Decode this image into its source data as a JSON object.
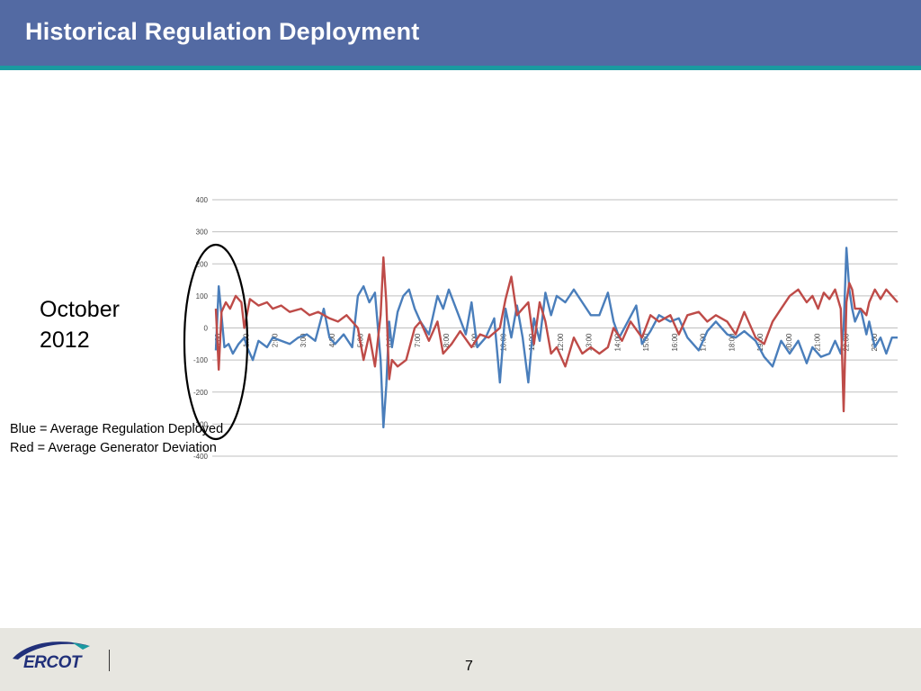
{
  "slide": {
    "title": "Historical Regulation Deployment",
    "side_label_line1": "October",
    "side_label_line2": "2012",
    "legend_blue": "Blue = Average Regulation Deployed",
    "legend_red": "Red = Average Generator Deviation",
    "page_number": "7"
  },
  "footer": {
    "logo_text": "ERCOT"
  },
  "colors": {
    "header": "#536aa3",
    "stripe": "#1a9aa0",
    "blue_series": "#4a7ebb",
    "red_series": "#be4b48",
    "footer": "#e7e6e0"
  },
  "chart_data": {
    "type": "line",
    "title": "",
    "xlabel": "",
    "ylabel": "",
    "ylim": [
      -400,
      400
    ],
    "yticks": [
      400,
      300,
      200,
      100,
      0,
      -100,
      -200,
      -300,
      -400
    ],
    "yticks_labels": [
      "400",
      "300",
      "200",
      "100",
      "0",
      "-100",
      "-200",
      "-300",
      "-400"
    ],
    "x_tick_labels": [
      "0:00",
      "1:00",
      "2:00",
      "3:00",
      "4:00",
      "5:00",
      "6:00",
      "7:00",
      "8:00",
      "9:00",
      "10:00",
      "11:00",
      "12:00",
      "13:00",
      "14:00",
      "15:00",
      "16:00",
      "17:00",
      "18:00",
      "19:00",
      "20:00",
      "21:00",
      "22:00",
      "23:00"
    ],
    "grid": true,
    "annotation": "ellipse highlighting 0:00-1:00",
    "series": [
      {
        "color": "#4a7ebb",
        "x": [
          0,
          0.1,
          0.2,
          0.3,
          0.45,
          0.6,
          0.8,
          1.0,
          1.1,
          1.3,
          1.5,
          1.8,
          2.0,
          2.3,
          2.6,
          2.9,
          3.2,
          3.5,
          3.8,
          4.0,
          4.2,
          4.5,
          4.8,
          5.0,
          5.2,
          5.4,
          5.6,
          5.8,
          5.9,
          6.0,
          6.1,
          6.2,
          6.4,
          6.6,
          6.8,
          7.0,
          7.2,
          7.5,
          7.8,
          8.0,
          8.2,
          8.5,
          8.8,
          9.0,
          9.2,
          9.5,
          9.8,
          10.0,
          10.2,
          10.4,
          10.6,
          10.8,
          11.0,
          11.2,
          11.4,
          11.6,
          11.8,
          12.0,
          12.3,
          12.6,
          12.9,
          13.2,
          13.5,
          13.8,
          14.0,
          14.2,
          14.5,
          14.8,
          15.0,
          15.3,
          15.6,
          16.0,
          16.3,
          16.6,
          17.0,
          17.3,
          17.6,
          18.0,
          18.3,
          18.6,
          19.0,
          19.3,
          19.6,
          19.9,
          20.2,
          20.5,
          20.8,
          21.0,
          21.3,
          21.6,
          21.8,
          22.0,
          22.1,
          22.2,
          22.3,
          22.4,
          22.5,
          22.7,
          22.9,
          23.0,
          23.2,
          23.4,
          23.6,
          23.8,
          24.0
        ],
        "y": [
          -70,
          130,
          40,
          -60,
          -50,
          -80,
          -50,
          -30,
          -60,
          -100,
          -40,
          -60,
          -30,
          -40,
          -50,
          -30,
          -20,
          -40,
          60,
          -30,
          -50,
          -20,
          -60,
          100,
          130,
          80,
          110,
          -100,
          -310,
          -180,
          20,
          -60,
          50,
          100,
          120,
          60,
          20,
          -20,
          100,
          60,
          120,
          50,
          -20,
          80,
          -60,
          -30,
          30,
          -170,
          60,
          -30,
          70,
          -30,
          -170,
          30,
          -40,
          110,
          40,
          100,
          80,
          120,
          80,
          40,
          40,
          110,
          20,
          -30,
          20,
          70,
          -50,
          -10,
          40,
          20,
          30,
          -30,
          -70,
          -10,
          20,
          -20,
          -30,
          -10,
          -40,
          -90,
          -120,
          -40,
          -80,
          -40,
          -110,
          -60,
          -90,
          -80,
          -40,
          -80,
          0,
          250,
          120,
          60,
          20,
          60,
          -20,
          20,
          -60,
          -30,
          -80,
          -30,
          -30
        ]
      },
      {
        "color": "#be4b48",
        "x": [
          0,
          0.1,
          0.2,
          0.35,
          0.5,
          0.7,
          0.9,
          1.0,
          1.2,
          1.5,
          1.8,
          2.0,
          2.3,
          2.6,
          3.0,
          3.3,
          3.6,
          4.0,
          4.3,
          4.6,
          5.0,
          5.2,
          5.4,
          5.6,
          5.8,
          5.9,
          6.0,
          6.1,
          6.2,
          6.4,
          6.7,
          7.0,
          7.2,
          7.5,
          7.8,
          8.0,
          8.3,
          8.6,
          9.0,
          9.3,
          9.6,
          10.0,
          10.2,
          10.4,
          10.6,
          10.8,
          11.0,
          11.2,
          11.4,
          11.6,
          11.8,
          12.0,
          12.3,
          12.6,
          12.9,
          13.2,
          13.5,
          13.8,
          14.0,
          14.3,
          14.6,
          15.0,
          15.3,
          15.6,
          16.0,
          16.3,
          16.6,
          17.0,
          17.3,
          17.6,
          18.0,
          18.3,
          18.6,
          19.0,
          19.3,
          19.6,
          19.9,
          20.2,
          20.5,
          20.8,
          21.0,
          21.2,
          21.4,
          21.6,
          21.8,
          22.0,
          22.1,
          22.2,
          22.3,
          22.4,
          22.5,
          22.7,
          22.9,
          23.0,
          23.2,
          23.4,
          23.6,
          23.8,
          24.0
        ],
        "y": [
          60,
          -130,
          50,
          80,
          60,
          100,
          80,
          0,
          90,
          70,
          80,
          60,
          70,
          50,
          60,
          40,
          50,
          30,
          20,
          40,
          0,
          -100,
          -20,
          -120,
          40,
          220,
          80,
          -160,
          -100,
          -120,
          -100,
          0,
          20,
          -40,
          20,
          -80,
          -50,
          -10,
          -60,
          -20,
          -30,
          0,
          90,
          160,
          40,
          60,
          80,
          -50,
          80,
          20,
          -80,
          -60,
          -120,
          -30,
          -80,
          -60,
          -80,
          -60,
          0,
          -40,
          20,
          -30,
          40,
          20,
          40,
          -20,
          40,
          50,
          20,
          40,
          20,
          -20,
          50,
          -30,
          -50,
          20,
          60,
          100,
          120,
          80,
          100,
          60,
          110,
          90,
          120,
          60,
          -260,
          80,
          140,
          120,
          60,
          60,
          40,
          80,
          120,
          90,
          120,
          100,
          80
        ]
      }
    ]
  }
}
